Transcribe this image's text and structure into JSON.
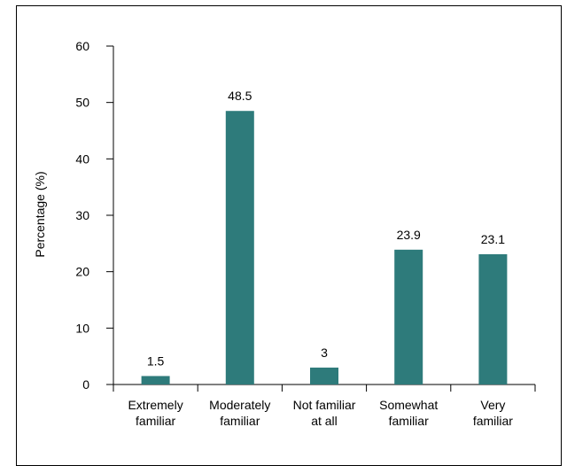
{
  "chart_data": {
    "type": "bar",
    "categories": [
      "Extremely familiar",
      "Moderately familiar",
      "Not familiar at all",
      "Somewhat familiar",
      "Very familiar"
    ],
    "category_lines": [
      [
        "Extremely",
        "familiar"
      ],
      [
        "Moderately",
        "familiar"
      ],
      [
        "Not familiar",
        "at all"
      ],
      [
        "Somewhat",
        "familiar"
      ],
      [
        "Very",
        "familiar"
      ]
    ],
    "values": [
      1.5,
      48.5,
      3,
      23.9,
      23.1
    ],
    "value_labels": [
      "1.5",
      "48.5",
      "3",
      "23.9",
      "23.1"
    ],
    "ylabel": "Percentage (%)",
    "xlabel": "",
    "title": "",
    "ylim": [
      0,
      60
    ],
    "yticks": [
      0,
      10,
      20,
      30,
      40,
      50,
      60
    ],
    "bar_color": "#2e7b7b",
    "grid": false,
    "legend": "none"
  }
}
